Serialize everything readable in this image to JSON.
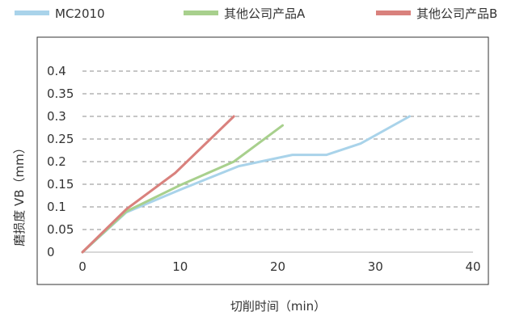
{
  "chart_data": {
    "type": "line",
    "title": "",
    "xlabel": "切削时间（min）",
    "ylabel": "磨损度 VB（mm）",
    "xlim": [
      0,
      40
    ],
    "ylim": [
      0,
      0.4
    ],
    "x_ticks": [
      "0",
      "10",
      "20",
      "30",
      "40"
    ],
    "y_ticks": [
      "0",
      "0.05",
      "0.1",
      "0.15",
      "0.2",
      "0.25",
      "0.3",
      "0.35",
      "0.4"
    ],
    "grid": "horizontal-dashed",
    "legend_position": "top",
    "series": [
      {
        "name": "MC2010",
        "color": "#a9d3ea",
        "points": [
          [
            0,
            0
          ],
          [
            4.5,
            0.088
          ],
          [
            10,
            0.138
          ],
          [
            16,
            0.19
          ],
          [
            21.5,
            0.215
          ],
          [
            25,
            0.215
          ],
          [
            28.5,
            0.24
          ],
          [
            33.5,
            0.3
          ]
        ]
      },
      {
        "name": "其他公司产品A",
        "color": "#a8d08d",
        "points": [
          [
            0,
            0
          ],
          [
            4.5,
            0.09
          ],
          [
            10,
            0.148
          ],
          [
            15.5,
            0.2
          ],
          [
            20.5,
            0.28
          ]
        ]
      },
      {
        "name": "其他公司产品B",
        "color": "#d9817d",
        "points": [
          [
            0,
            0
          ],
          [
            4.5,
            0.095
          ],
          [
            9.5,
            0.175
          ],
          [
            15.5,
            0.3
          ]
        ]
      }
    ]
  }
}
